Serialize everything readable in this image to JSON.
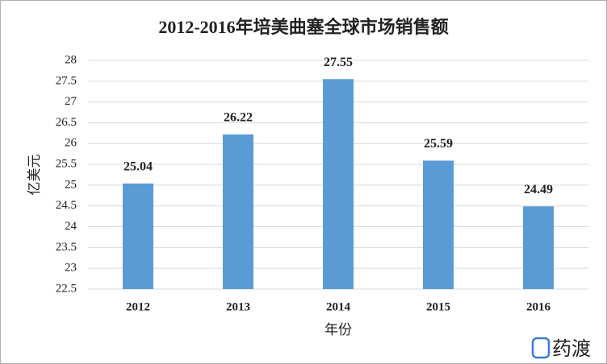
{
  "chart_data": {
    "type": "bar",
    "title": "2012-2016年培美曲塞全球市场销售额",
    "xlabel": "年份",
    "ylabel": "亿美元",
    "categories": [
      "2012",
      "2013",
      "2014",
      "2015",
      "2016"
    ],
    "values": [
      25.04,
      26.22,
      27.55,
      25.59,
      24.49
    ],
    "color": "#5b9bd5",
    "ylim": [
      22.5,
      28
    ],
    "yticks": [
      22.5,
      23,
      23.5,
      24,
      24.5,
      25,
      25.5,
      26,
      26.5,
      27,
      27.5,
      28
    ],
    "grid": true
  },
  "watermark": "药渡"
}
